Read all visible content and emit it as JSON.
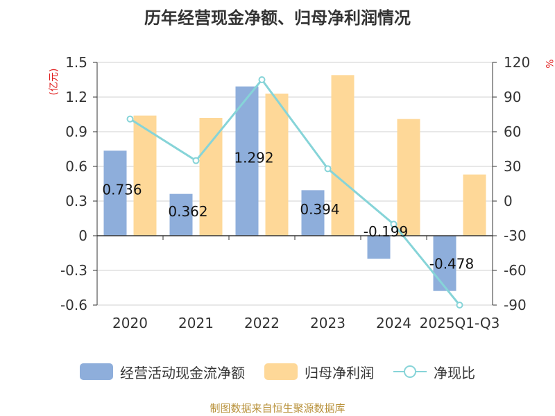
{
  "title": "历年经营现金净额、归母净利润情况",
  "source": "制图数据来自恒生聚源数据库",
  "chart_data": {
    "type": "bar+line",
    "title": "历年经营现金净额、归母净利润情况",
    "categories": [
      "2020",
      "2021",
      "2022",
      "2023",
      "2024",
      "2025Q1-Q3"
    ],
    "left_axis": {
      "unit": "(亿元)",
      "min": -0.6,
      "max": 1.5,
      "step": 0.3,
      "ticks": [
        "-0.6",
        "-0.3",
        "0",
        "0.3",
        "0.6",
        "0.9",
        "1.2",
        "1.5"
      ]
    },
    "right_axis": {
      "unit": "%",
      "min": -90,
      "max": 120,
      "step": 30,
      "ticks": [
        "-90",
        "-60",
        "-30",
        "0",
        "30",
        "60",
        "90",
        "120"
      ]
    },
    "series": [
      {
        "name": "经营活动现金流净额",
        "type": "bar",
        "axis": "left",
        "color": "#8eaedb",
        "values": [
          0.736,
          0.362,
          1.292,
          0.394,
          -0.199,
          -0.478
        ],
        "labels": [
          "0.736",
          "0.362",
          "1.292",
          "0.394",
          "-0.199",
          "-0.478"
        ]
      },
      {
        "name": "归母净利润",
        "type": "bar",
        "axis": "left",
        "color": "#fed898",
        "values": [
          1.04,
          1.02,
          1.23,
          1.39,
          1.01,
          0.53
        ]
      },
      {
        "name": "净现比",
        "type": "line",
        "axis": "right",
        "color": "#86d4d8",
        "values": [
          71,
          35,
          105,
          28,
          -20,
          -90
        ]
      }
    ]
  }
}
